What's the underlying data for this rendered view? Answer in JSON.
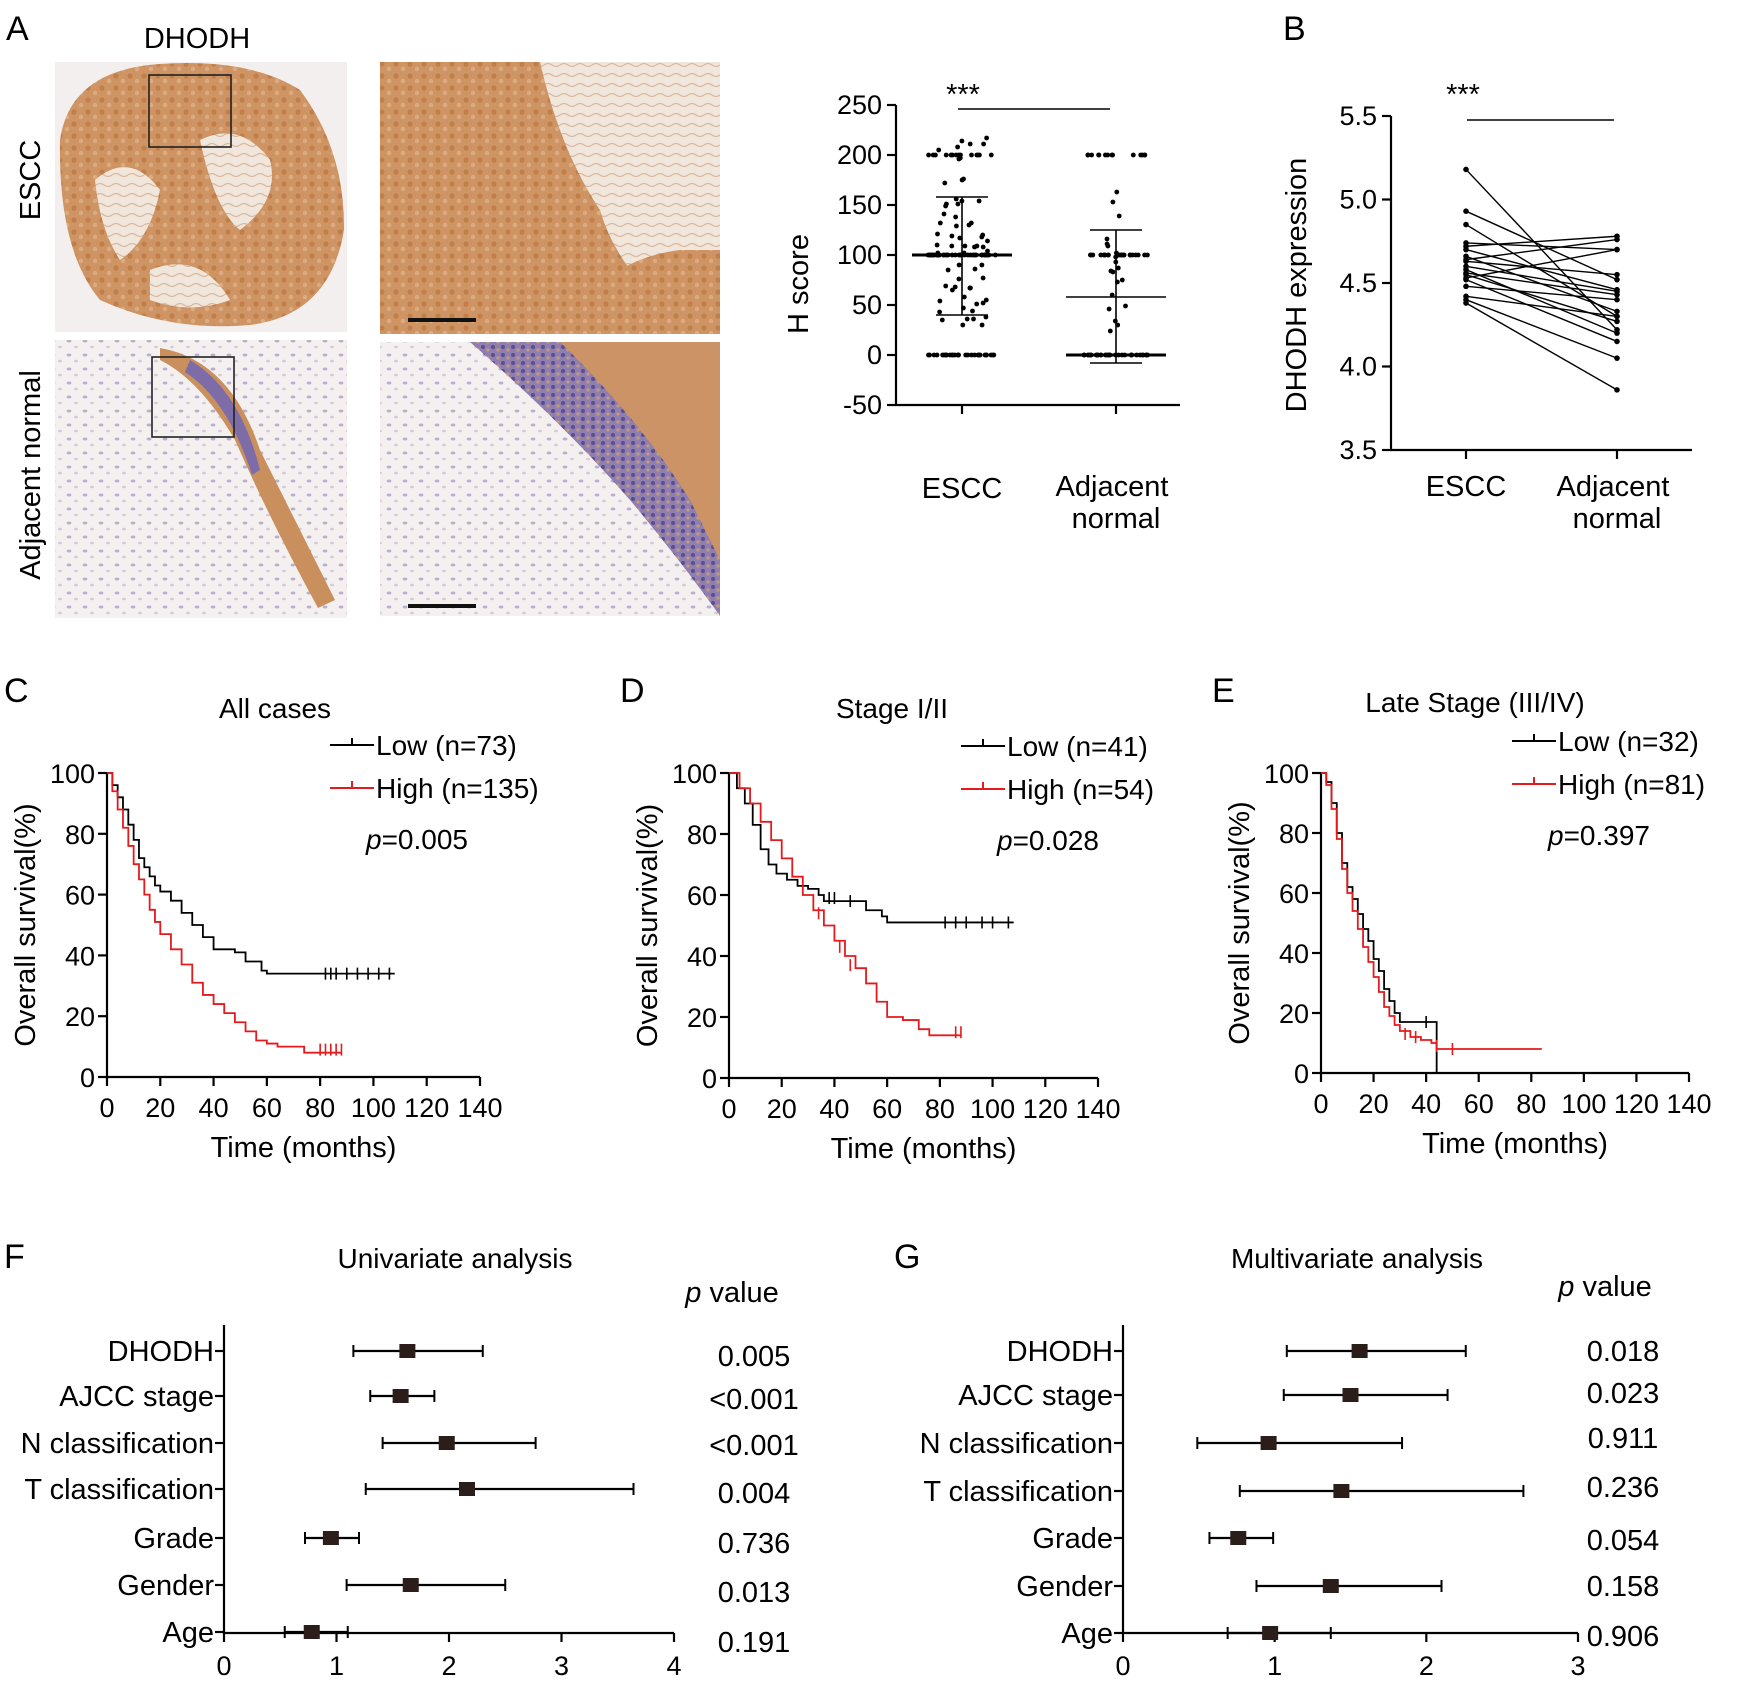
{
  "colors": {
    "low": "#000000",
    "high": "#e41a1c",
    "tissue": "#c98a55"
  },
  "panel_A": {
    "letter": "A",
    "title": "DHODH",
    "row_labels": [
      "ESCC",
      "Adjacent normal"
    ],
    "h_score_chart": {
      "type": "scatter",
      "ylabel": "H score",
      "ylim": [
        -50,
        250
      ],
      "yticks": [
        -50,
        0,
        50,
        100,
        150,
        200,
        250
      ],
      "categories": [
        "ESCC",
        "Adjacent normal"
      ],
      "significance": "***",
      "series": [
        {
          "name": "ESCC",
          "median": 100,
          "sd_low": 40,
          "sd_high": 158
        },
        {
          "name": "Adjacent normal",
          "median": 0,
          "sd_low": -8,
          "sd_high": 125,
          "mean": 58
        }
      ]
    }
  },
  "panel_B": {
    "letter": "B",
    "type": "line",
    "ylabel": "DHODH expression",
    "ylim": [
      3.5,
      5.5
    ],
    "yticks": [
      "3.5",
      "4.0",
      "4.5",
      "5.0",
      "5.5"
    ],
    "categories": [
      "ESCC",
      "Adjacent normal"
    ],
    "significance": "***",
    "pairs": [
      [
        5.18,
        4.22
      ],
      [
        4.93,
        4.52
      ],
      [
        4.85,
        4.3
      ],
      [
        4.74,
        4.7
      ],
      [
        4.72,
        4.78
      ],
      [
        4.7,
        4.46
      ],
      [
        4.66,
        4.33
      ],
      [
        4.64,
        4.76
      ],
      [
        4.63,
        4.55
      ],
      [
        4.6,
        4.45
      ],
      [
        4.58,
        4.2
      ],
      [
        4.56,
        4.43
      ],
      [
        4.55,
        4.27
      ],
      [
        4.53,
        4.7
      ],
      [
        4.52,
        4.15
      ],
      [
        4.48,
        4.4
      ],
      [
        4.42,
        4.3
      ],
      [
        4.4,
        4.05
      ],
      [
        4.38,
        3.86
      ]
    ]
  },
  "panel_C": {
    "letter": "C",
    "type": "line",
    "title": "All cases",
    "xlabel": "Time (months)",
    "ylabel": "Overall survival(%)",
    "xticks": [
      0,
      20,
      40,
      60,
      80,
      100,
      120,
      140
    ],
    "yticks": [
      0,
      20,
      40,
      60,
      80,
      100
    ],
    "legend": [
      "Low (n=73)",
      "High (n=135)"
    ],
    "p_label": "p",
    "p_value": "=0.005",
    "low": [
      [
        0,
        100
      ],
      [
        2,
        96
      ],
      [
        4,
        92
      ],
      [
        6,
        88
      ],
      [
        8,
        83
      ],
      [
        10,
        78
      ],
      [
        12,
        72
      ],
      [
        14,
        69
      ],
      [
        16,
        66
      ],
      [
        18,
        63
      ],
      [
        20,
        61
      ],
      [
        24,
        58
      ],
      [
        28,
        54
      ],
      [
        32,
        50
      ],
      [
        36,
        46
      ],
      [
        40,
        42
      ],
      [
        48,
        41
      ],
      [
        52,
        38
      ],
      [
        58,
        35
      ],
      [
        60,
        34
      ],
      [
        108,
        34
      ]
    ],
    "high": [
      [
        0,
        100
      ],
      [
        2,
        94
      ],
      [
        4,
        88
      ],
      [
        6,
        82
      ],
      [
        8,
        76
      ],
      [
        10,
        70
      ],
      [
        12,
        65
      ],
      [
        14,
        60
      ],
      [
        16,
        55
      ],
      [
        18,
        51
      ],
      [
        20,
        47
      ],
      [
        24,
        42
      ],
      [
        28,
        37
      ],
      [
        32,
        31
      ],
      [
        36,
        27
      ],
      [
        40,
        24
      ],
      [
        44,
        21
      ],
      [
        48,
        18
      ],
      [
        52,
        15
      ],
      [
        56,
        12
      ],
      [
        60,
        11
      ],
      [
        64,
        10
      ],
      [
        74,
        8
      ],
      [
        88,
        8
      ]
    ],
    "low_censor": [
      [
        82,
        34
      ],
      [
        84,
        34
      ],
      [
        86,
        34
      ],
      [
        90,
        34
      ],
      [
        94,
        34
      ],
      [
        98,
        34
      ],
      [
        102,
        34
      ],
      [
        106,
        34
      ]
    ],
    "high_censor": [
      [
        80,
        9
      ],
      [
        82,
        9
      ],
      [
        84,
        9
      ],
      [
        86,
        9
      ],
      [
        88,
        9
      ]
    ]
  },
  "panel_D": {
    "letter": "D",
    "type": "line",
    "title": "Stage I/II",
    "xlabel": "Time (months)",
    "ylabel": "Overall survival(%)",
    "xticks": [
      0,
      20,
      40,
      60,
      80,
      100,
      120,
      140
    ],
    "yticks": [
      0,
      20,
      40,
      60,
      80,
      100
    ],
    "legend": [
      "Low (n=41)",
      "High (n=54)"
    ],
    "p_label": "p",
    "p_value": "=0.028",
    "low": [
      [
        0,
        100
      ],
      [
        3,
        95
      ],
      [
        6,
        90
      ],
      [
        9,
        83
      ],
      [
        12,
        75
      ],
      [
        15,
        70
      ],
      [
        18,
        67
      ],
      [
        22,
        65
      ],
      [
        26,
        63
      ],
      [
        30,
        62
      ],
      [
        34,
        60
      ],
      [
        36,
        58
      ],
      [
        48,
        58
      ],
      [
        52,
        55
      ],
      [
        58,
        53
      ],
      [
        60,
        51
      ],
      [
        108,
        51
      ]
    ],
    "high": [
      [
        0,
        100
      ],
      [
        4,
        95
      ],
      [
        8,
        90
      ],
      [
        12,
        84
      ],
      [
        16,
        78
      ],
      [
        20,
        72
      ],
      [
        24,
        66
      ],
      [
        28,
        60
      ],
      [
        32,
        55
      ],
      [
        36,
        50
      ],
      [
        40,
        45
      ],
      [
        44,
        40
      ],
      [
        48,
        36
      ],
      [
        52,
        31
      ],
      [
        56,
        25
      ],
      [
        60,
        20
      ],
      [
        66,
        19
      ],
      [
        72,
        16
      ],
      [
        76,
        14
      ],
      [
        88,
        14
      ]
    ],
    "low_censor": [
      [
        38,
        59
      ],
      [
        40,
        59
      ],
      [
        46,
        58
      ],
      [
        82,
        51
      ],
      [
        86,
        51
      ],
      [
        90,
        51
      ],
      [
        96,
        51
      ],
      [
        100,
        51
      ],
      [
        106,
        51
      ]
    ],
    "high_censor": [
      [
        34,
        54
      ],
      [
        42,
        43
      ],
      [
        46,
        37
      ],
      [
        86,
        15
      ],
      [
        88,
        15
      ]
    ]
  },
  "panel_E": {
    "letter": "E",
    "type": "line",
    "title": "Late Stage (III/IV)",
    "xlabel": "Time (months)",
    "ylabel": "Overall survival(%)",
    "xticks": [
      0,
      20,
      40,
      60,
      80,
      100,
      120,
      140
    ],
    "yticks": [
      0,
      20,
      40,
      60,
      80,
      100
    ],
    "legend": [
      "Low (n=32)",
      "High (n=81)"
    ],
    "p_label": "p",
    "p_value": "=0.397",
    "low": [
      [
        0,
        100
      ],
      [
        2,
        97
      ],
      [
        4,
        90
      ],
      [
        6,
        80
      ],
      [
        8,
        70
      ],
      [
        10,
        62
      ],
      [
        12,
        58
      ],
      [
        14,
        53
      ],
      [
        16,
        48
      ],
      [
        18,
        44
      ],
      [
        20,
        38
      ],
      [
        22,
        34
      ],
      [
        24,
        28
      ],
      [
        26,
        24
      ],
      [
        28,
        20
      ],
      [
        30,
        17
      ],
      [
        38,
        17
      ],
      [
        42,
        17
      ],
      [
        44,
        0
      ]
    ],
    "high": [
      [
        0,
        100
      ],
      [
        2,
        96
      ],
      [
        4,
        88
      ],
      [
        6,
        78
      ],
      [
        8,
        68
      ],
      [
        10,
        60
      ],
      [
        12,
        54
      ],
      [
        14,
        48
      ],
      [
        16,
        42
      ],
      [
        18,
        37
      ],
      [
        20,
        32
      ],
      [
        22,
        27
      ],
      [
        24,
        22
      ],
      [
        26,
        19
      ],
      [
        28,
        16
      ],
      [
        30,
        14
      ],
      [
        34,
        12
      ],
      [
        38,
        11
      ],
      [
        42,
        10
      ],
      [
        44,
        8
      ],
      [
        84,
        8
      ]
    ],
    "low_censor": [
      [
        40,
        17
      ]
    ],
    "high_censor": [
      [
        32,
        13
      ],
      [
        36,
        12
      ],
      [
        44,
        9
      ],
      [
        50,
        8
      ]
    ]
  },
  "panel_F": {
    "letter": "F",
    "type": "forest",
    "title": "Univariate analysis",
    "p_header_italic": "p",
    "p_header": "value",
    "xlim": [
      0,
      4
    ],
    "xticks": [
      0,
      1,
      2,
      3,
      4
    ],
    "rows": [
      {
        "label": "DHODH",
        "hr": 1.63,
        "lo": 1.15,
        "hi": 2.3,
        "p": "0.005"
      },
      {
        "label": "AJCC stage",
        "hr": 1.57,
        "lo": 1.3,
        "hi": 1.87,
        "p": "<0.001"
      },
      {
        "label": "N classification",
        "hr": 1.98,
        "lo": 1.41,
        "hi": 2.77,
        "p": "<0.001"
      },
      {
        "label": "T classification",
        "hr": 2.16,
        "lo": 1.26,
        "hi": 3.64,
        "p": "0.004"
      },
      {
        "label": "Grade",
        "hr": 0.95,
        "lo": 0.72,
        "hi": 1.2,
        "p": "0.736"
      },
      {
        "label": "Gender",
        "hr": 1.66,
        "lo": 1.09,
        "hi": 2.5,
        "p": "0.013"
      },
      {
        "label": "Age",
        "hr": 0.78,
        "lo": 0.54,
        "hi": 1.1,
        "p": "0.191"
      }
    ]
  },
  "panel_G": {
    "letter": "G",
    "type": "forest",
    "title": "Multivariate analysis",
    "p_header_italic": "p",
    "p_header": "value",
    "xlim": [
      0,
      3
    ],
    "xticks": [
      0,
      1,
      2,
      3
    ],
    "rows": [
      {
        "label": "DHODH",
        "hr": 1.56,
        "lo": 1.08,
        "hi": 2.26,
        "p": "0.018"
      },
      {
        "label": "AJCC stage",
        "hr": 1.5,
        "lo": 1.06,
        "hi": 2.14,
        "p": "0.023"
      },
      {
        "label": "N classification",
        "hr": 0.96,
        "lo": 0.49,
        "hi": 1.84,
        "p": "0.911"
      },
      {
        "label": "T classification",
        "hr": 1.44,
        "lo": 0.77,
        "hi": 2.64,
        "p": "0.236"
      },
      {
        "label": "Grade",
        "hr": 0.76,
        "lo": 0.57,
        "hi": 0.99,
        "p": "0.054"
      },
      {
        "label": "Gender",
        "hr": 1.37,
        "lo": 0.88,
        "hi": 2.1,
        "p": "0.158"
      },
      {
        "label": "Age",
        "hr": 0.97,
        "lo": 0.69,
        "hi": 1.37,
        "p": "0.906"
      }
    ]
  }
}
